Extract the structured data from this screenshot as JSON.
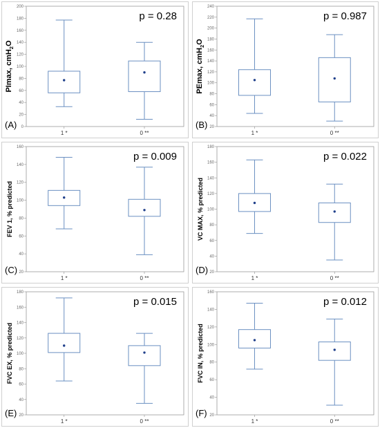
{
  "style": {
    "box_color": "#6a8fc1",
    "mean_color": "#1f3f8a",
    "axis_color": "#9a9a9a"
  },
  "chart_data": [
    {
      "type": "box",
      "panel": "(A)",
      "ylabel": "PImax, cmH",
      "ylabel_sub": "2",
      "ylabel_tail": "O",
      "pvalue": "p = 0.28",
      "ylim": [
        0,
        200
      ],
      "yticks": [
        0,
        20,
        40,
        60,
        80,
        100,
        120,
        140,
        160,
        180,
        200
      ],
      "categories": [
        "1 *",
        "0 **"
      ],
      "boxes": [
        {
          "category": "1 *",
          "min": 33,
          "q1": 56,
          "mean": 77,
          "q3": 92,
          "max": 177
        },
        {
          "category": "0 **",
          "min": 12,
          "q1": 58,
          "mean": 90,
          "q3": 109,
          "max": 140
        }
      ]
    },
    {
      "type": "box",
      "panel": "(B)",
      "ylabel": "PEmax, cmH",
      "ylabel_sub": "2",
      "ylabel_tail": "O",
      "pvalue": "p = 0.987",
      "ylim": [
        20,
        240
      ],
      "yticks": [
        20,
        40,
        60,
        80,
        100,
        120,
        140,
        160,
        180,
        200,
        220,
        240
      ],
      "categories": [
        "1 *",
        "0 **"
      ],
      "boxes": [
        {
          "category": "1 *",
          "min": 44,
          "q1": 77,
          "mean": 105,
          "q3": 124,
          "max": 217
        },
        {
          "category": "0 **",
          "min": 30,
          "q1": 65,
          "mean": 108,
          "q3": 146,
          "max": 188
        }
      ]
    },
    {
      "type": "box",
      "panel": "(C)",
      "ylabel": "FEV 1, % predicted",
      "ylabel_sub": "",
      "ylabel_tail": "",
      "pvalue": "p = 0.009",
      "ylim": [
        20,
        160
      ],
      "yticks": [
        20,
        40,
        60,
        80,
        100,
        120,
        140,
        160
      ],
      "categories": [
        "1 *",
        "0 **"
      ],
      "boxes": [
        {
          "category": "1 *",
          "min": 68,
          "q1": 94,
          "mean": 103,
          "q3": 111,
          "max": 148
        },
        {
          "category": "0 **",
          "min": 39,
          "q1": 82,
          "mean": 89,
          "q3": 101,
          "max": 137
        }
      ]
    },
    {
      "type": "box",
      "panel": "(D)",
      "ylabel": "VC MAX, % predicted",
      "ylabel_sub": "",
      "ylabel_tail": "",
      "pvalue": "p = 0.022",
      "ylim": [
        20,
        180
      ],
      "yticks": [
        20,
        40,
        60,
        80,
        100,
        120,
        140,
        160,
        180
      ],
      "categories": [
        "1 *",
        "0 **"
      ],
      "boxes": [
        {
          "category": "1 *",
          "min": 69,
          "q1": 97,
          "mean": 108,
          "q3": 120,
          "max": 163
        },
        {
          "category": "0 **",
          "min": 35,
          "q1": 83,
          "mean": 97,
          "q3": 108,
          "max": 132
        }
      ]
    },
    {
      "type": "box",
      "panel": "(E)",
      "ylabel": "FVC EX, % predicted",
      "ylabel_sub": "",
      "ylabel_tail": "",
      "pvalue": "p = 0.015",
      "ylim": [
        20,
        180
      ],
      "yticks": [
        20,
        40,
        60,
        80,
        100,
        120,
        140,
        160,
        180
      ],
      "categories": [
        "1 *",
        "0 **"
      ],
      "boxes": [
        {
          "category": "1 *",
          "min": 64,
          "q1": 101,
          "mean": 110,
          "q3": 126,
          "max": 172
        },
        {
          "category": "0 **",
          "min": 35,
          "q1": 84,
          "mean": 101,
          "q3": 110,
          "max": 126
        }
      ]
    },
    {
      "type": "box",
      "panel": "(F)",
      "ylabel": "FVC IN, % predicted",
      "ylabel_sub": "",
      "ylabel_tail": "",
      "pvalue": "p = 0.012",
      "ylim": [
        20,
        160
      ],
      "yticks": [
        20,
        40,
        60,
        80,
        100,
        120,
        140,
        160
      ],
      "categories": [
        "1 *",
        "0 **"
      ],
      "boxes": [
        {
          "category": "1 *",
          "min": 72,
          "q1": 96,
          "mean": 105,
          "q3": 117,
          "max": 147
        },
        {
          "category": "0 **",
          "min": 31,
          "q1": 82,
          "mean": 94,
          "q3": 103,
          "max": 129
        }
      ]
    }
  ]
}
